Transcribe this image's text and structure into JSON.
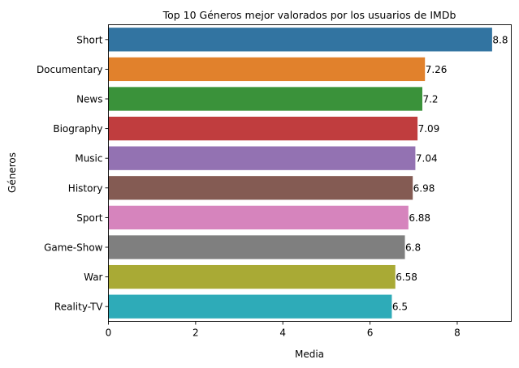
{
  "chart_data": {
    "type": "bar",
    "orientation": "horizontal",
    "title": "Top 10 Géneros mejor valorados por los usuarios de IMDb",
    "xlabel": "Media",
    "ylabel": "Géneros",
    "categories": [
      "Short",
      "Documentary",
      "News",
      "Biography",
      "Music",
      "History",
      "Sport",
      "Game-Show",
      "War",
      "Reality-TV"
    ],
    "values": [
      8.8,
      7.26,
      7.2,
      7.09,
      7.04,
      6.98,
      6.88,
      6.8,
      6.58,
      6.5
    ],
    "value_labels": [
      "8.8",
      "7.26",
      "7.2",
      "7.09",
      "7.04",
      "6.98",
      "6.88",
      "6.8",
      "6.58",
      "6.5"
    ],
    "xlim": [
      0,
      9.24
    ],
    "xticks": [
      0,
      2,
      4,
      6,
      8
    ],
    "xtick_labels": [
      "0",
      "2",
      "4",
      "6",
      "8"
    ],
    "grid": false,
    "legend": "none",
    "colors": [
      "#3274a1",
      "#e1812c",
      "#3a923a",
      "#c03d3e",
      "#9372b2",
      "#845b53",
      "#d684bd",
      "#7f7f7f",
      "#a9aa35",
      "#2eabb8"
    ]
  }
}
